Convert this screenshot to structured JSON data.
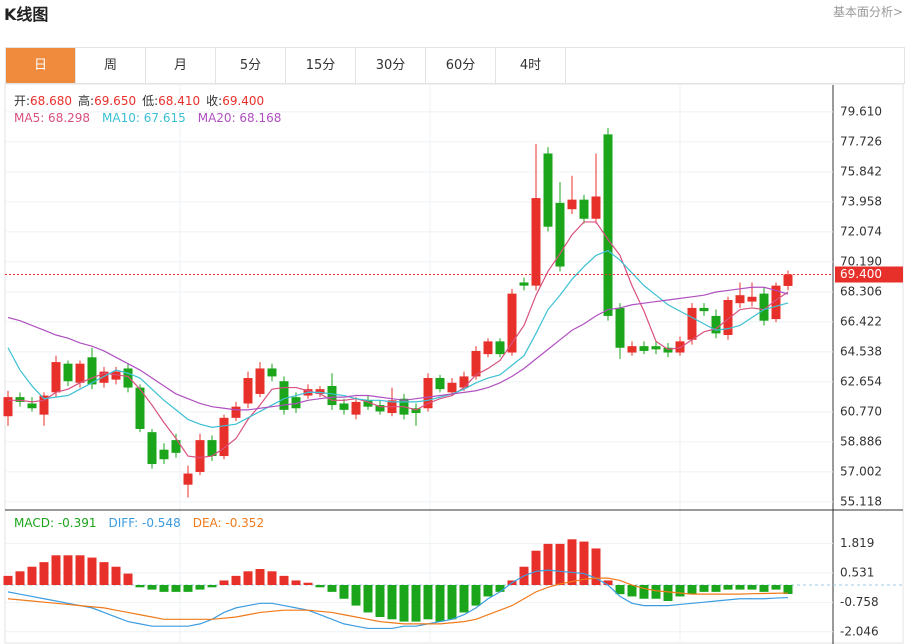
{
  "header": {
    "title": "K线图",
    "link": "基本面分析>"
  },
  "tabs": [
    "日",
    "周",
    "月",
    "5分",
    "15分",
    "30分",
    "60分",
    "4时"
  ],
  "active_tab": 0,
  "chart_data": [
    {
      "type": "candlestick",
      "info": [
        {
          "label": "开:",
          "value": "68.680"
        },
        {
          "label": "高:",
          "value": "69.650"
        },
        {
          "label": "低:",
          "value": "68.410"
        },
        {
          "label": "收:",
          "value": "69.400"
        }
      ],
      "up_color": "#e8302b",
      "down_color": "#1aa51a",
      "open": [
        60.5,
        61.7,
        61.3,
        60.6,
        62.0,
        63.8,
        62.6,
        64.2,
        62.6,
        62.8,
        63.5,
        62.3,
        59.5,
        58.4,
        59.0,
        56.2,
        57.0,
        59.0,
        58.0,
        60.4,
        61.3,
        61.9,
        63.5,
        62.7,
        61.7,
        61.8,
        61.9,
        62.4,
        61.3,
        60.6,
        61.5,
        61.2,
        60.7,
        61.6,
        61.0,
        61.0,
        62.9,
        62.0,
        62.3,
        63.0,
        64.4,
        65.2,
        64.5,
        68.9,
        68.7,
        77.0,
        73.9,
        73.5,
        74.1,
        72.9,
        78.2,
        67.3,
        64.5,
        64.9,
        64.9,
        64.8,
        64.5,
        65.3,
        67.3,
        66.8,
        65.6,
        67.6,
        67.7,
        68.2,
        66.6,
        68.68
      ],
      "high": [
        62.1,
        62.0,
        61.7,
        62.0,
        64.3,
        64.0,
        64.0,
        64.8,
        63.6,
        63.6,
        63.8,
        62.5,
        59.7,
        58.8,
        59.4,
        57.4,
        59.4,
        59.3,
        60.6,
        61.4,
        63.3,
        63.9,
        63.8,
        63.0,
        62.0,
        62.5,
        62.4,
        63.2,
        61.6,
        61.7,
        61.8,
        61.5,
        62.3,
        61.9,
        61.3,
        63.2,
        63.1,
        62.9,
        63.3,
        64.9,
        65.4,
        65.4,
        68.5,
        69.2,
        77.6,
        77.4,
        75.2,
        75.6,
        74.4,
        77.0,
        78.6,
        67.6,
        65.2,
        65.2,
        65.2,
        65.1,
        65.5,
        67.6,
        67.6,
        67.2,
        68.0,
        68.9,
        68.9,
        68.6,
        68.9,
        69.65
      ],
      "low": [
        59.9,
        61.1,
        60.8,
        59.9,
        61.7,
        62.4,
        62.3,
        62.2,
        62.3,
        62.5,
        62.0,
        59.5,
        57.2,
        57.5,
        57.9,
        55.4,
        56.8,
        57.7,
        57.8,
        60.2,
        61.0,
        61.7,
        62.7,
        60.6,
        60.7,
        61.6,
        61.7,
        60.9,
        60.6,
        60.3,
        60.9,
        60.6,
        60.5,
        60.3,
        59.9,
        60.8,
        62.0,
        61.8,
        62.1,
        62.8,
        64.2,
        64.2,
        64.3,
        68.4,
        68.4,
        72.1,
        69.6,
        73.2,
        72.6,
        72.6,
        66.5,
        64.1,
        64.3,
        64.4,
        64.4,
        64.2,
        64.3,
        65.0,
        66.8,
        65.4,
        65.3,
        67.3,
        67.4,
        66.2,
        66.4,
        68.41
      ],
      "close": [
        61.7,
        61.4,
        61.0,
        61.8,
        63.9,
        62.7,
        63.8,
        62.5,
        63.3,
        63.3,
        62.3,
        59.7,
        57.5,
        57.8,
        58.2,
        56.9,
        59.0,
        58.0,
        60.4,
        61.1,
        62.9,
        63.5,
        63.0,
        60.9,
        61.0,
        62.2,
        62.2,
        61.2,
        60.9,
        61.4,
        61.1,
        60.8,
        61.5,
        60.6,
        60.7,
        62.9,
        62.2,
        62.6,
        63.0,
        64.6,
        65.2,
        64.4,
        68.2,
        68.7,
        74.2,
        72.4,
        69.9,
        74.1,
        72.9,
        74.3,
        66.8,
        64.8,
        64.9,
        64.6,
        64.7,
        64.5,
        65.2,
        67.3,
        67.1,
        65.7,
        67.8,
        68.1,
        68.0,
        66.5,
        68.7,
        69.4
      ],
      "series": [
        {
          "name": "MA5: 68.298",
          "color": "#d9507e",
          "values": [
            61.5,
            61.5,
            61.4,
            61.5,
            62.0,
            62.2,
            62.6,
            62.9,
            63.2,
            63.1,
            63.0,
            62.2,
            61.2,
            60.1,
            59.1,
            58.0,
            57.9,
            58.0,
            58.5,
            59.1,
            60.3,
            61.2,
            62.2,
            62.3,
            62.3,
            62.1,
            61.9,
            61.5,
            61.5,
            61.6,
            61.4,
            61.1,
            61.1,
            61.1,
            60.9,
            61.3,
            61.6,
            61.8,
            62.3,
            63.1,
            63.5,
            64.0,
            65.1,
            66.2,
            68.1,
            69.6,
            70.7,
            71.9,
            72.7,
            72.7,
            71.6,
            70.6,
            68.7,
            67.1,
            65.2,
            64.7,
            64.8,
            65.3,
            65.8,
            66.0,
            66.6,
            67.2,
            67.3,
            67.2,
            67.8,
            68.298
          ]
        },
        {
          "name": "MA10: 67.615",
          "color": "#3cc0d4",
          "values": [
            64.8,
            63.4,
            62.4,
            61.6,
            61.7,
            61.8,
            62.2,
            62.6,
            63.0,
            63.4,
            63.2,
            62.9,
            62.2,
            61.5,
            60.9,
            60.3,
            60.0,
            59.8,
            59.9,
            60.0,
            60.4,
            60.8,
            61.2,
            61.6,
            61.8,
            62.0,
            62.0,
            61.9,
            61.8,
            61.6,
            61.5,
            61.5,
            61.4,
            61.4,
            61.4,
            61.5,
            61.7,
            61.9,
            62.2,
            62.6,
            62.9,
            63.1,
            63.7,
            64.3,
            65.7,
            67.2,
            68.1,
            69.1,
            69.9,
            70.6,
            70.9,
            70.3,
            69.5,
            68.7,
            68.1,
            67.5,
            67.1,
            66.7,
            66.3,
            65.9,
            66.0,
            66.2,
            66.7,
            67.2,
            67.4,
            67.615
          ]
        },
        {
          "name": "MA20: 68.168",
          "color": "#b050c0",
          "values": [
            66.7,
            66.5,
            66.2,
            65.9,
            65.6,
            65.4,
            65.1,
            64.9,
            64.6,
            64.2,
            63.8,
            63.4,
            62.9,
            62.4,
            61.9,
            61.6,
            61.3,
            61.1,
            61.0,
            60.9,
            60.9,
            61.0,
            61.1,
            61.2,
            61.3,
            61.5,
            61.6,
            61.7,
            61.7,
            61.8,
            61.8,
            61.7,
            61.6,
            61.5,
            61.6,
            61.7,
            61.8,
            61.9,
            62.0,
            62.1,
            62.3,
            62.6,
            63.0,
            63.5,
            64.1,
            64.7,
            65.3,
            65.9,
            66.3,
            66.8,
            67.2,
            67.3,
            67.5,
            67.6,
            67.7,
            67.8,
            67.9,
            68.0,
            68.1,
            68.3,
            68.4,
            68.5,
            68.6,
            68.6,
            68.4,
            68.168
          ]
        }
      ],
      "last_price": {
        "value": 69.4,
        "label": "69.400"
      },
      "last_color": "#e8302b",
      "ylim": [
        54.8,
        81.3
      ],
      "yticks": [
        {
          "value": 79.61,
          "label": "79.610"
        },
        77.726,
        75.842,
        73.958,
        72.074,
        {
          "value": 70.19,
          "label": "70.190"
        },
        68.306,
        66.422,
        64.538,
        62.654,
        {
          "value": 60.77,
          "label": "60.770"
        },
        58.886,
        57.002,
        55.118
      ],
      "grid": true
    },
    {
      "type": "macd",
      "series": [
        {
          "name": "MACD: -0.391",
          "kind": "bar",
          "color": "#1aa51a",
          "up_color": "#e8302b",
          "down_color": "#1aa51a",
          "values": [
            0.4,
            0.6,
            0.8,
            1.0,
            1.3,
            1.3,
            1.3,
            1.2,
            1.0,
            0.8,
            0.5,
            -0.1,
            -0.2,
            -0.3,
            -0.3,
            -0.3,
            -0.2,
            -0.1,
            0.2,
            0.4,
            0.6,
            0.7,
            0.6,
            0.4,
            0.2,
            0.1,
            -0.1,
            -0.3,
            -0.6,
            -0.9,
            -1.2,
            -1.4,
            -1.5,
            -1.6,
            -1.6,
            -1.5,
            -1.6,
            -1.5,
            -1.2,
            -0.9,
            -0.5,
            -0.3,
            0.2,
            0.8,
            1.5,
            1.8,
            1.8,
            2.0,
            1.9,
            1.6,
            0.2,
            -0.4,
            -0.5,
            -0.6,
            -0.6,
            -0.7,
            -0.5,
            -0.4,
            -0.3,
            -0.3,
            -0.2,
            -0.2,
            -0.2,
            -0.3,
            -0.2,
            -0.391
          ]
        },
        {
          "name": "DIFF: -0.548",
          "kind": "line",
          "color": "#3b9de0",
          "values": [
            -0.3,
            -0.4,
            -0.5,
            -0.6,
            -0.7,
            -0.8,
            -0.9,
            -1.0,
            -1.2,
            -1.4,
            -1.6,
            -1.7,
            -1.8,
            -1.8,
            -1.8,
            -1.8,
            -1.7,
            -1.5,
            -1.2,
            -1.0,
            -0.9,
            -0.8,
            -0.8,
            -0.9,
            -1.0,
            -1.1,
            -1.3,
            -1.5,
            -1.7,
            -1.8,
            -1.9,
            -1.9,
            -1.9,
            -1.8,
            -1.8,
            -1.7,
            -1.6,
            -1.5,
            -1.3,
            -1.0,
            -0.6,
            -0.3,
            0.1,
            0.4,
            0.6,
            0.65,
            0.6,
            0.55,
            0.5,
            0.3,
            0.0,
            -0.5,
            -0.8,
            -0.9,
            -0.9,
            -0.9,
            -0.85,
            -0.8,
            -0.75,
            -0.7,
            -0.65,
            -0.6,
            -0.6,
            -0.6,
            -0.57,
            -0.548
          ]
        },
        {
          "name": "DEA: -0.352",
          "kind": "line",
          "color": "#f07a1a",
          "values": [
            -0.6,
            -0.65,
            -0.7,
            -0.75,
            -0.8,
            -0.85,
            -0.9,
            -0.95,
            -1.0,
            -1.1,
            -1.2,
            -1.3,
            -1.4,
            -1.5,
            -1.5,
            -1.5,
            -1.5,
            -1.5,
            -1.45,
            -1.4,
            -1.3,
            -1.2,
            -1.15,
            -1.1,
            -1.1,
            -1.1,
            -1.15,
            -1.2,
            -1.3,
            -1.4,
            -1.5,
            -1.6,
            -1.65,
            -1.7,
            -1.7,
            -1.7,
            -1.7,
            -1.65,
            -1.6,
            -1.5,
            -1.3,
            -1.1,
            -0.9,
            -0.6,
            -0.3,
            -0.1,
            0.05,
            0.15,
            0.25,
            0.3,
            0.3,
            0.2,
            0.0,
            -0.15,
            -0.25,
            -0.3,
            -0.35,
            -0.4,
            -0.4,
            -0.4,
            -0.4,
            -0.4,
            -0.38,
            -0.37,
            -0.36,
            -0.352
          ]
        }
      ],
      "ylim": [
        -2.58,
        3.15
      ],
      "yticks": [
        1.819,
        0.531,
        -0.758,
        -2.046
      ],
      "grid": true
    }
  ]
}
